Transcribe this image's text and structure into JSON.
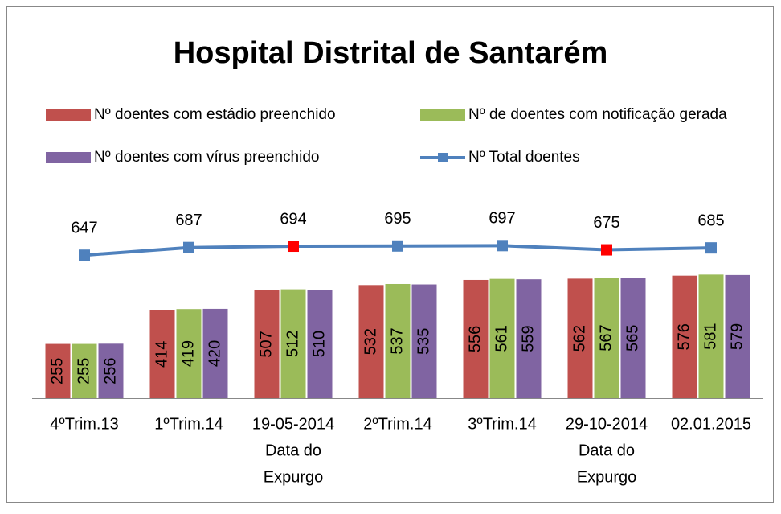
{
  "chart_data": {
    "type": "bar-line",
    "title": "Hospital Distrital de Santarém",
    "categories": [
      [
        "4ºTrim.13"
      ],
      [
        "1ºTrim.14"
      ],
      [
        "19-05-2014",
        "Data do",
        "Expurgo"
      ],
      [
        "2ºTrim.14"
      ],
      [
        "3ºTrim.14"
      ],
      [
        "29-10-2014",
        "Data do",
        "Expurgo"
      ],
      [
        "02.01.2015"
      ]
    ],
    "series": [
      {
        "name": "Nº  doentes com estádio preenchido",
        "color": "#c0504d",
        "values": [
          255,
          414,
          507,
          532,
          556,
          562,
          576
        ]
      },
      {
        "name": "Nº de doentes com notificação gerada",
        "color": "#9bbb59",
        "values": [
          255,
          419,
          512,
          537,
          561,
          567,
          581
        ]
      },
      {
        "name": "Nº  doentes com vírus preenchido",
        "color": "#8064a2",
        "values": [
          256,
          420,
          510,
          535,
          559,
          565,
          579
        ]
      },
      {
        "name": "Nº  Total doentes",
        "color": "#4f81bd",
        "type": "line",
        "axis": "y2",
        "values": [
          647,
          687,
          694,
          695,
          697,
          675,
          685
        ],
        "marker_colors": [
          "#4f81bd",
          "#4f81bd",
          "#ff0000",
          "#4f81bd",
          "#4f81bd",
          "#ff0000",
          "#4f81bd"
        ]
      }
    ],
    "ylim": [
      0,
      900
    ],
    "y2lim": [
      -100,
      900
    ]
  }
}
